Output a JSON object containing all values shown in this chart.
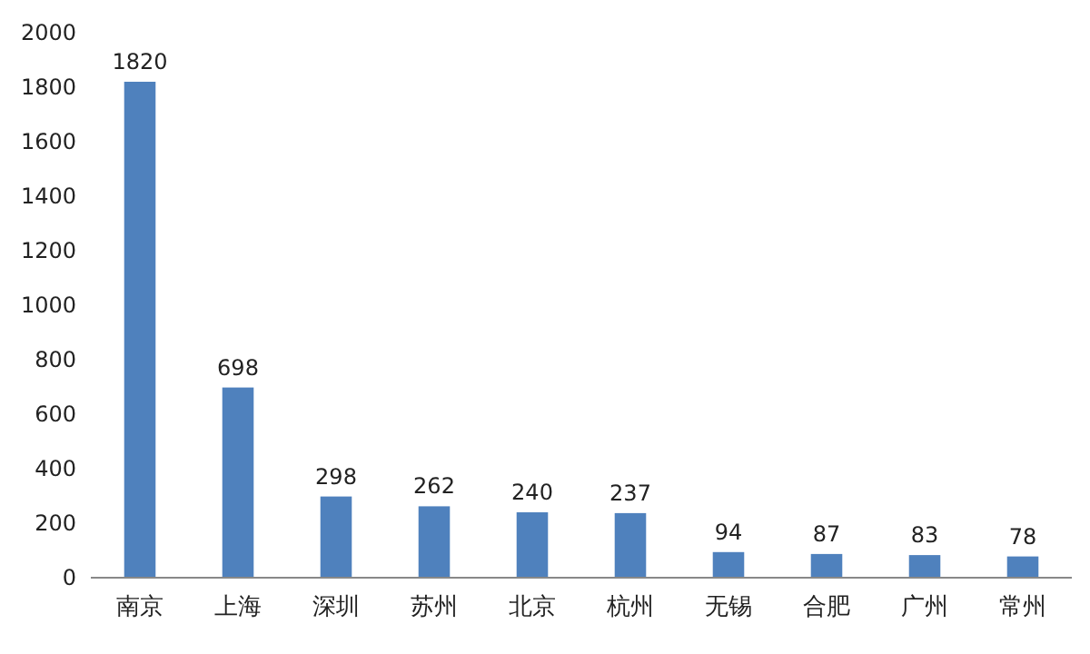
{
  "chart_data": {
    "type": "bar",
    "categories": [
      "南京",
      "上海",
      "深圳",
      "苏州",
      "北京",
      "杭州",
      "无锡",
      "合肥",
      "广州",
      "常州"
    ],
    "values": [
      1820,
      698,
      298,
      262,
      240,
      237,
      94,
      87,
      83,
      78
    ],
    "color": "#4f81bd",
    "ylim": [
      0,
      2000
    ],
    "yticks": [
      0,
      200,
      400,
      600,
      800,
      1000,
      1200,
      1400,
      1600,
      1800,
      2000
    ],
    "data_labels": true
  }
}
